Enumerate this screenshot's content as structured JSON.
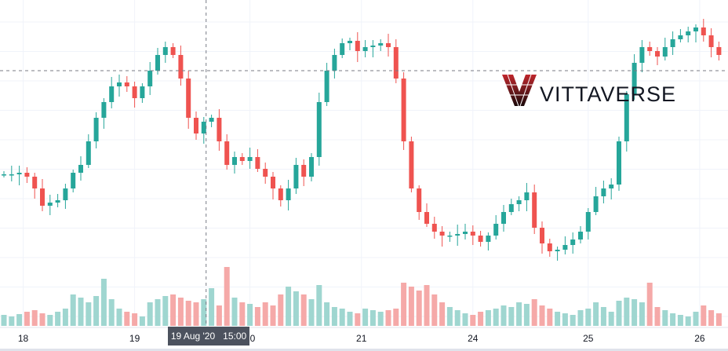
{
  "chart_data": {
    "type": "candlestick",
    "title": "",
    "colors": {
      "up": "#26a69a",
      "down": "#ef5350",
      "up_volume": "#9fd6d0",
      "down_volume": "#f5a9a8",
      "grid": "#f0f3fa",
      "crosshair": "#787b86"
    },
    "close": [
      178,
      178,
      180,
      175,
      160,
      138,
      142,
      145,
      160,
      180,
      190,
      220,
      250,
      270,
      290,
      295,
      290,
      275,
      290,
      310,
      330,
      340,
      330,
      300,
      250,
      230,
      245,
      250,
      220,
      190,
      200,
      195,
      200,
      185,
      175,
      160,
      145,
      160,
      190,
      175,
      200,
      270,
      310,
      330,
      345,
      348,
      335,
      340,
      342,
      345,
      340,
      300,
      220,
      160,
      130,
      115,
      105,
      100,
      100,
      102,
      105,
      100,
      92,
      100,
      115,
      130,
      140,
      145,
      155,
      110,
      90,
      80,
      82,
      88,
      95,
      105,
      130,
      150,
      160,
      165,
      220,
      280,
      320,
      340,
      335,
      328,
      340,
      350,
      355,
      360,
      365,
      355,
      340,
      330
    ],
    "volume": [
      14,
      12,
      15,
      18,
      20,
      16,
      14,
      18,
      22,
      40,
      36,
      30,
      38,
      60,
      34,
      22,
      18,
      16,
      12,
      30,
      34,
      38,
      40,
      36,
      32,
      30,
      34,
      48,
      26,
      75,
      36,
      30,
      28,
      24,
      30,
      26,
      40,
      50,
      44,
      40,
      34,
      52,
      30,
      24,
      22,
      18,
      16,
      22,
      20,
      18,
      20,
      22,
      55,
      50,
      45,
      52,
      40,
      30,
      24,
      20,
      16,
      14,
      18,
      20,
      22,
      26,
      24,
      30,
      28,
      34,
      26,
      22,
      18,
      16,
      14,
      20,
      22,
      30,
      24,
      18,
      32,
      36,
      34,
      30,
      55,
      24,
      20,
      16,
      14,
      12,
      18,
      26,
      20,
      16
    ],
    "x_ticks": [
      {
        "label": "18",
        "at_candle": 2.5
      },
      {
        "label": "19",
        "at_candle": 17
      },
      {
        "label": "20",
        "at_candle": 32
      },
      {
        "label": "21",
        "at_candle": 46.5
      },
      {
        "label": "24",
        "at_candle": 61
      },
      {
        "label": "25",
        "at_candle": 76
      },
      {
        "label": "26",
        "at_candle": 90.5
      }
    ],
    "crosshair": {
      "time_label": "19 Aug '20   15:00",
      "at_candle": 26.3,
      "price": 310
    },
    "grid": true
  },
  "watermark": {
    "brand": "VITTAVERSE"
  }
}
